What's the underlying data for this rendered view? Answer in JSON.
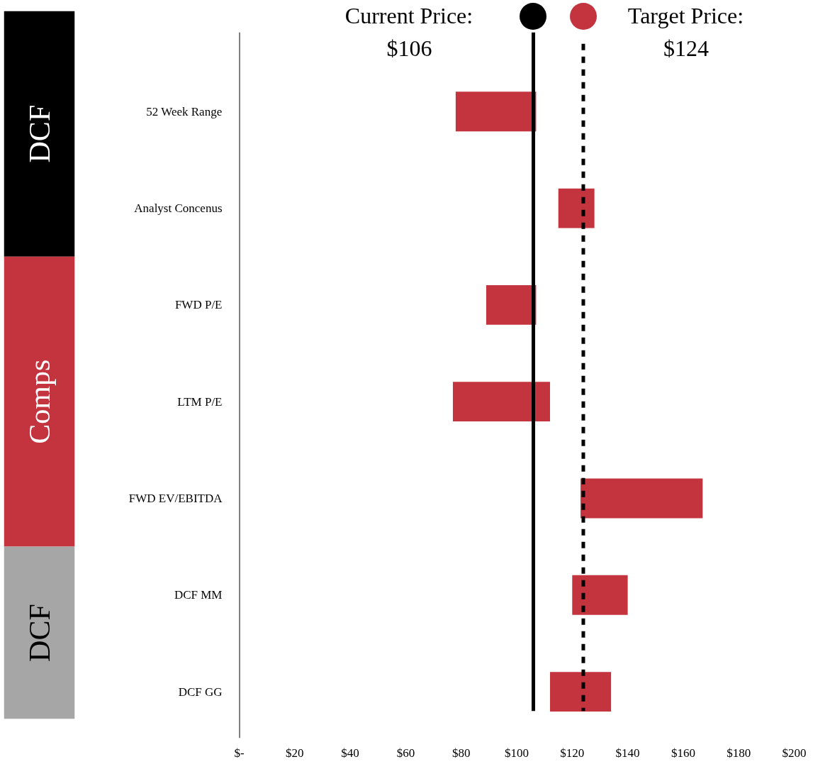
{
  "chart_data": {
    "type": "bar",
    "orientation": "horizontal",
    "categories": [
      "52 Week Range",
      "Analyst Concenus",
      "FWD P/E",
      "LTM P/E",
      "FWD EV/EBITDA",
      "DCF MM",
      "DCF GG"
    ],
    "base": [
      78,
      115,
      89,
      77,
      123,
      120,
      112
    ],
    "values": [
      29,
      13,
      18,
      35,
      44,
      20,
      22
    ],
    "color": "#c4343f",
    "xlim": [
      0,
      200
    ],
    "xticks": [
      {
        "value": 0,
        "label": "$-"
      },
      {
        "value": 20,
        "label": "$20"
      },
      {
        "value": 40,
        "label": "$40"
      },
      {
        "value": 60,
        "label": "$60"
      },
      {
        "value": 80,
        "label": "$80"
      },
      {
        "value": 100,
        "label": "$100"
      },
      {
        "value": 120,
        "label": "$120"
      },
      {
        "value": 140,
        "label": "$140"
      },
      {
        "value": 160,
        "label": "$160"
      },
      {
        "value": 180,
        "label": "$180"
      },
      {
        "value": 200,
        "label": "$200"
      }
    ],
    "ref_lines": [
      {
        "axis": "x",
        "value": 106,
        "label": "Current Price:\n$106",
        "color": "#000000",
        "line_style": "solid"
      },
      {
        "axis": "x",
        "value": 124,
        "label": "Target Price:\n$124",
        "color": "#000000",
        "line_style": "dashed"
      }
    ],
    "annotations": [
      "DCF",
      "Comps",
      "DCF"
    ],
    "grid": false
  }
}
